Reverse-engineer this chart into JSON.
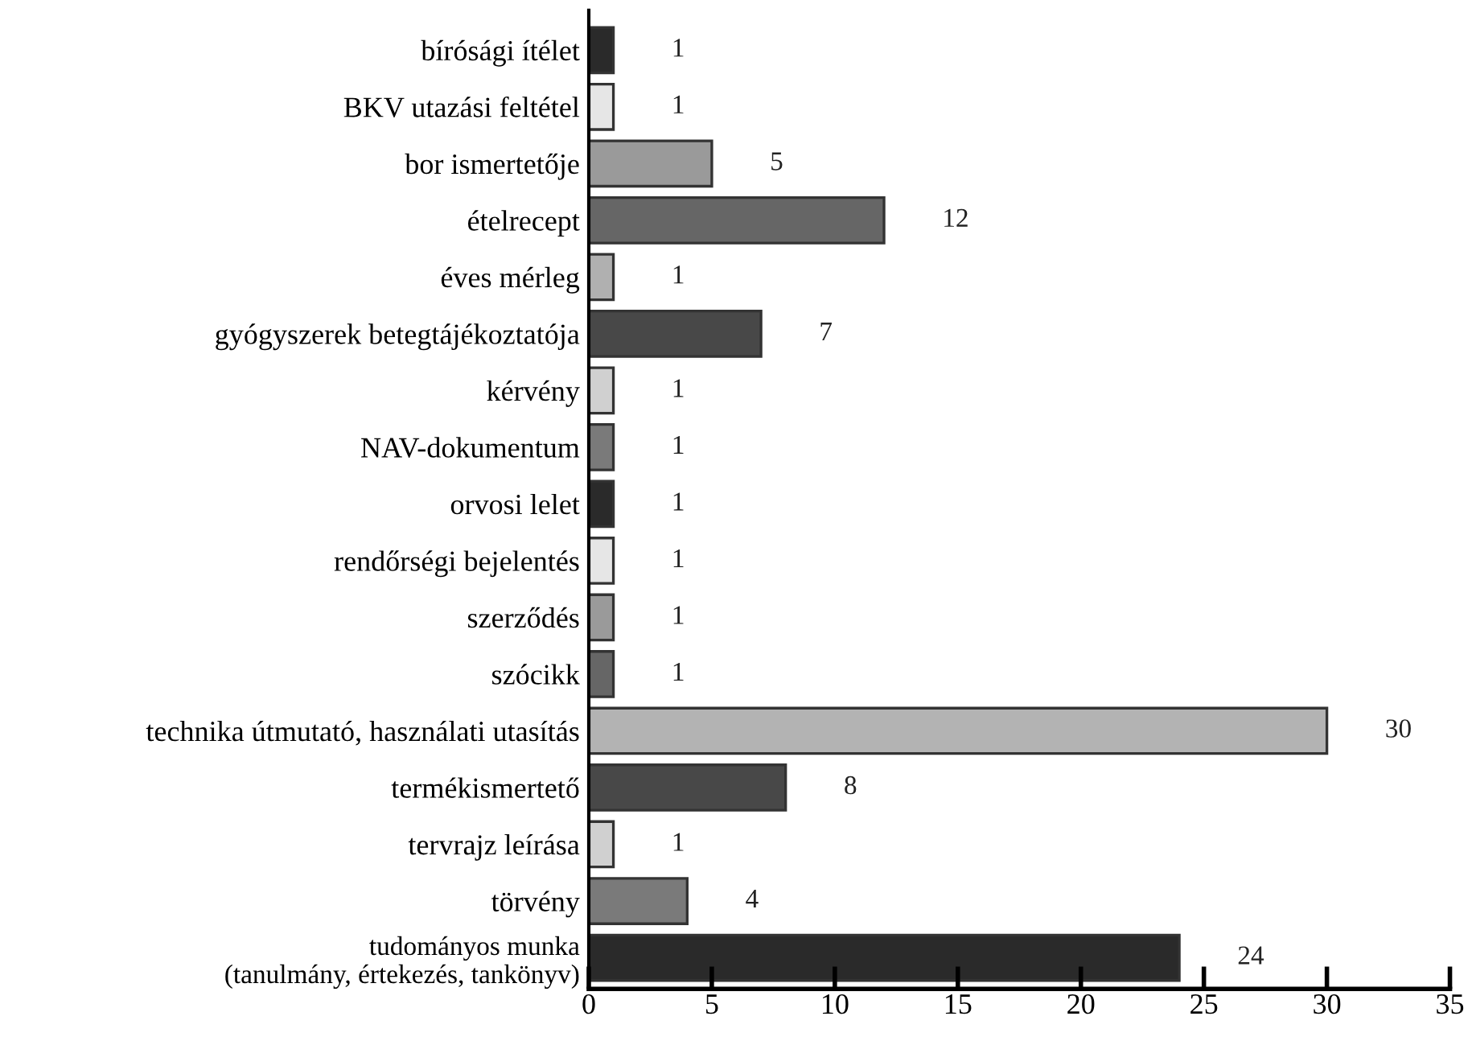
{
  "chart_data": {
    "type": "bar",
    "orientation": "horizontal",
    "categories": [
      "bírósági ítélet",
      "BKV utazási feltétel",
      "bor ismertetője",
      "ételrecept",
      "éves mérleg",
      "gyógyszerek betegtájékoztatója",
      "kérvény",
      "NAV-dokumentum",
      "orvosi lelet",
      "rendőrségi bejelentés",
      "szerződés",
      "szócikk",
      "technika útmutató, használati utasítás",
      "termékismertető",
      "tervrajz leírása",
      "törvény",
      "tudományos munka\n(tanulmány, értekezés, tankönyv)"
    ],
    "values": [
      1,
      1,
      5,
      12,
      1,
      7,
      1,
      1,
      1,
      1,
      1,
      1,
      30,
      8,
      1,
      4,
      24
    ],
    "colors": [
      "#2a2a2a",
      "#e6e6e6",
      "#9a9a9a",
      "#666666",
      "#b0b0b0",
      "#484848",
      "#d0d0d0",
      "#7a7a7a",
      "#2a2a2a",
      "#e6e6e6",
      "#9a9a9a",
      "#666666",
      "#b3b3b3",
      "#484848",
      "#d0d0d0",
      "#7a7a7a",
      "#2a2a2a"
    ],
    "xlim": [
      0,
      35
    ],
    "xticks": [
      0,
      5,
      10,
      15,
      20,
      25,
      30,
      35
    ],
    "data_labels": true,
    "grid": false,
    "legend": false
  }
}
